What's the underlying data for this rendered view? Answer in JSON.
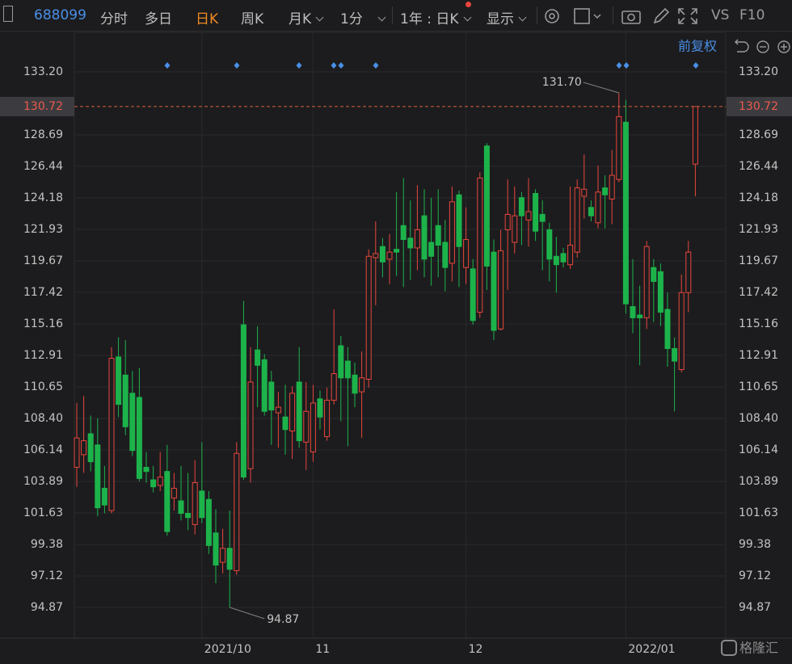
{
  "toolbar": {
    "code": "688099",
    "tabs": [
      "分时",
      "多日",
      "日K",
      "周K",
      "月K",
      "1分"
    ],
    "period": "1年 : 日K",
    "display": "显示",
    "vs": "VS",
    "f10": "F10"
  },
  "adjust": "前复权",
  "watermark": "格隆汇",
  "chart_data": {
    "type": "candlestick",
    "categories": [
      null,
      null,
      null,
      null,
      null,
      null,
      null,
      null,
      null,
      null,
      null,
      null,
      null,
      null,
      null,
      null,
      null,
      null,
      "2021/10",
      null,
      null,
      null,
      null,
      null,
      null,
      null,
      null,
      null,
      null,
      null,
      null,
      null,
      null,
      null,
      "11",
      null,
      null,
      null,
      null,
      null,
      null,
      null,
      null,
      null,
      null,
      null,
      null,
      null,
      null,
      null,
      null,
      null,
      null,
      null,
      null,
      null,
      "12",
      null,
      null,
      null,
      null,
      null,
      null,
      null,
      null,
      null,
      null,
      null,
      null,
      null,
      null,
      null,
      null,
      null,
      null,
      null,
      null,
      null,
      null,
      "2022/01",
      null,
      null,
      null,
      null,
      null,
      null,
      null,
      null,
      null,
      null
    ],
    "open": [
      104.9,
      105.8,
      107.3,
      106.5,
      103.4,
      101.8,
      112.8,
      111.5,
      110.2,
      109.9,
      104.9,
      104.0,
      103.6,
      104.6,
      102.7,
      102.5,
      101.6,
      100.8,
      103.2,
      102.6,
      100.2,
      98.1,
      99.1,
      97.5,
      115.1,
      104.8,
      113.3,
      112.6,
      111.0,
      108.8,
      108.5,
      107.5,
      111.0,
      106.7,
      106.0,
      109.8,
      107.1,
      109.7,
      113.6,
      112.5,
      111.5,
      110.3,
      111.2,
      119.9,
      120.7,
      119.8,
      120.5,
      122.2,
      121.3,
      120.6,
      122.9,
      121.0,
      122.2,
      121.0,
      119.5,
      124.4,
      119.2,
      119.1,
      116.0,
      127.9,
      120.3,
      114.8,
      121.9,
      121.0,
      124.2,
      122.6,
      124.5,
      123.0,
      121.9,
      120.0,
      120.2,
      119.4,
      120.3,
      124.3,
      123.5,
      122.4,
      124.9,
      124.1,
      125.5,
      129.6,
      116.4,
      115.8,
      115.6,
      119.2,
      118.9,
      116.2,
      113.4,
      111.9,
      117.4,
      126.6
    ],
    "high": [
      109.5,
      110.0,
      108.6,
      108.4,
      105,
      113.5,
      114.2,
      114.0,
      111.8,
      112.0,
      106.0,
      105.0,
      106,
      106.5,
      104.5,
      105,
      104.5,
      105.4,
      106.7,
      103.2,
      101.9,
      100.5,
      101.8,
      106.7,
      116.8,
      113.5,
      115.0,
      113.0,
      111.8,
      110.3,
      110.8,
      110.7,
      113.5,
      111.0,
      110.8,
      110.4,
      110.6,
      116.2,
      114.3,
      113.5,
      112.4,
      113.2,
      120.5,
      122.5,
      121.3,
      121.6,
      124.6,
      125.6,
      124.0,
      125.1,
      124.8,
      124.2,
      124.8,
      122.6,
      125.0,
      124.7,
      123.5,
      119.8,
      126.0,
      128.1,
      121.2,
      121.9,
      125.5,
      125.0,
      124.6,
      125.6,
      124.8,
      124.0,
      122.4,
      121.4,
      120.6,
      125.0,
      125.5,
      127.3,
      124.0,
      126.5,
      125.8,
      127.6,
      131.7,
      131.2,
      119.8,
      117.9,
      121.1,
      119.8,
      119.5,
      117.4,
      114.2,
      118.7,
      121.1,
      130.72
    ],
    "low": [
      103.5,
      104.5,
      104.6,
      101.4,
      101.6,
      101.6,
      108.5,
      107.2,
      105.7,
      103.9,
      103.8,
      103.1,
      103.2,
      100.0,
      101.8,
      101.1,
      100.4,
      100.1,
      100.9,
      98.7,
      96.6,
      97.3,
      94.87,
      97.2,
      104.0,
      103.8,
      109.2,
      108.6,
      106.5,
      106.3,
      105.8,
      105.5,
      106.3,
      104.7,
      105.3,
      107.6,
      106.8,
      109.4,
      108.2,
      106.4,
      109.2,
      107.0,
      110.6,
      116.5,
      118.5,
      118.0,
      118.6,
      117.8,
      118.3,
      119.0,
      118.5,
      117.9,
      118.5,
      117.5,
      118.2,
      117.8,
      118.0,
      115.1,
      115.6,
      117.6,
      114.0,
      114.7,
      117.6,
      120.2,
      120.8,
      120.7,
      121.1,
      119.0,
      118.2,
      117.4,
      119.2,
      119.1,
      119.9,
      122.7,
      122.5,
      122.0,
      122.0,
      122.3,
      125.3,
      115.9,
      114.5,
      112.2,
      114.8,
      115.3,
      115.0,
      112.1,
      108.9,
      111.7,
      116.0,
      124.3
    ],
    "close": [
      107.0,
      106.8,
      105.3,
      102.0,
      102.2,
      112.7,
      109.4,
      107.8,
      106.1,
      104.1,
      104.6,
      103.5,
      104.2,
      100.3,
      103.4,
      101.6,
      101.3,
      103.8,
      101.3,
      99.3,
      97.9,
      99.1,
      97.6,
      105.9,
      104.2,
      111.0,
      112.2,
      108.9,
      109.0,
      109.2,
      107.6,
      110.2,
      106.8,
      108.9,
      109.5,
      108.5,
      109.7,
      111.6,
      111.3,
      111.3,
      110.2,
      111.3,
      120.0,
      120.2,
      119.6,
      120.3,
      120.3,
      121.2,
      120.6,
      121.9,
      119.8,
      120.0,
      120.8,
      119.2,
      123.9,
      120.7,
      121.2,
      115.4,
      125.6,
      119.3,
      114.7,
      120.4,
      123.0,
      122.9,
      122.9,
      123.2,
      121.8,
      122.5,
      119.8,
      119.4,
      119.6,
      120.8,
      124.9,
      124.8,
      122.9,
      124.6,
      124.4,
      125.8,
      130.0,
      116.6,
      115.6,
      115.6,
      120.7,
      118.2,
      116.0,
      113.4,
      112.5,
      117.4,
      120.3,
      130.72
    ],
    "up_color": "#e8463c",
    "down_color": "#1db34b",
    "ylim": [
      92.67,
      134.01
    ],
    "yticks": [
      {
        "value": 133.2,
        "label": "133.20"
      },
      128.69,
      126.44,
      124.18,
      121.93,
      119.67,
      117.42,
      115.16,
      112.91,
      110.65,
      {
        "value": 108.4,
        "label": "108.40"
      },
      106.14,
      103.89,
      101.63,
      99.38,
      97.12,
      94.87
    ],
    "grid": true,
    "last_price": 130.72,
    "high_label": {
      "value": 131.7,
      "label": "131.70"
    },
    "low_label": 94.87
  }
}
